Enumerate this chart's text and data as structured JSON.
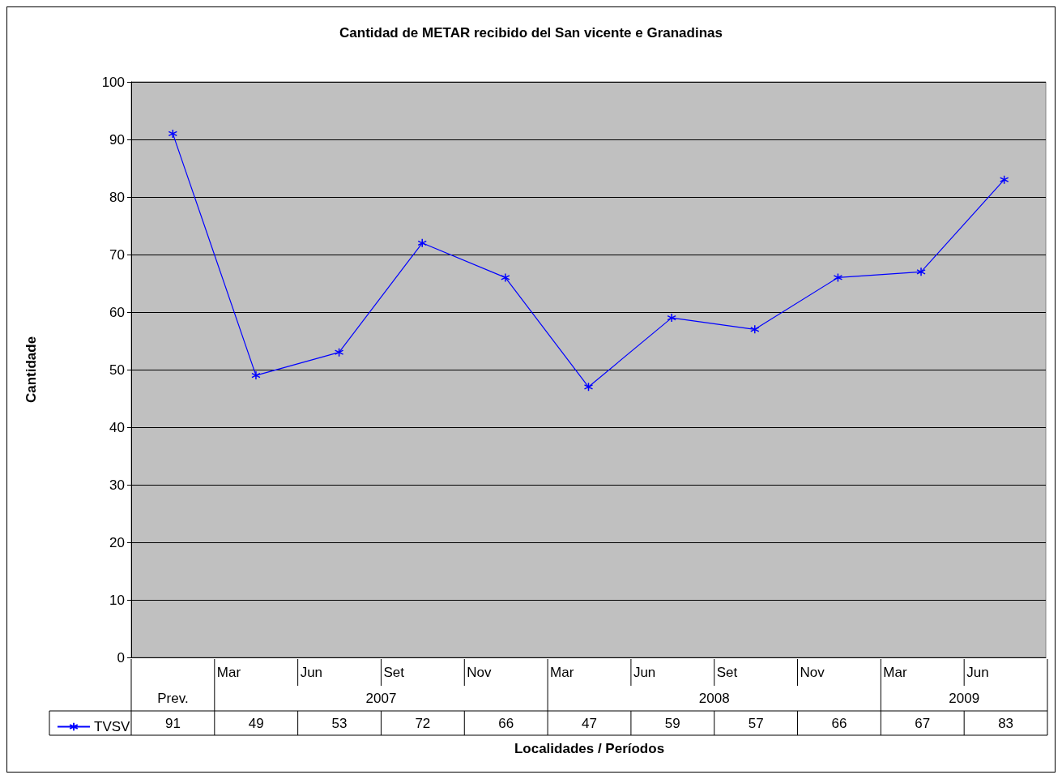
{
  "chart_data": {
    "type": "line",
    "title": "Cantidad de METAR recibido del San vicente e Granadinas",
    "xlabel": "Localidades / Períodos",
    "ylabel": "Cantidade",
    "categories": [
      "Prev.",
      "Mar",
      "Jun",
      "Set",
      "Nov",
      "Mar",
      "Jun",
      "Set",
      "Nov",
      "Mar",
      "Jun"
    ],
    "annotations": [
      "2007",
      "2008",
      "2009"
    ],
    "series": [
      {
        "name": "TVSV",
        "color": "#0000ff",
        "values": [
          91,
          49,
          53,
          72,
          66,
          47,
          59,
          57,
          66,
          67,
          83
        ]
      }
    ],
    "ylim": [
      0,
      100
    ],
    "yticks": [
      0,
      10,
      20,
      30,
      40,
      50,
      60,
      70,
      80,
      90,
      100
    ],
    "grid": "y",
    "legend": "bottom left",
    "marker": "cross",
    "line_style": "solid",
    "data_labels": true
  }
}
